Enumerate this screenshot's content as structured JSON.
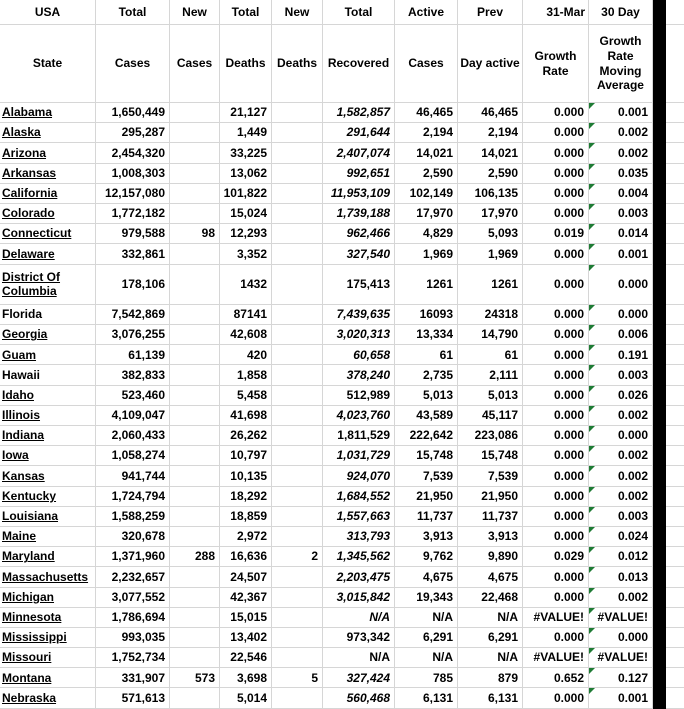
{
  "table": {
    "header_row1": [
      "USA",
      "Total",
      "New",
      "Total",
      "New",
      "Total",
      "Active",
      "Prev",
      "31-Mar",
      "30 Day"
    ],
    "header_row2": [
      "State",
      "Cases",
      "Cases",
      "Deaths",
      "Deaths",
      "Recovered",
      "Cases",
      "Day active",
      "Growth Rate",
      "Growth Rate Moving Average"
    ],
    "rows": [
      {
        "state": "Alabama",
        "underline": true,
        "tall": false,
        "cases": "1,650,449",
        "new_cases": "",
        "deaths": "21,127",
        "new_deaths": "",
        "recovered": "1,582,857",
        "recovered_italic": true,
        "active": "46,465",
        "prev": "46,465",
        "growth": "0.000",
        "growth30": "0.001",
        "triangle": true
      },
      {
        "state": "Alaska",
        "underline": true,
        "tall": false,
        "cases": "295,287",
        "new_cases": "",
        "deaths": "1,449",
        "new_deaths": "",
        "recovered": "291,644",
        "recovered_italic": true,
        "active": "2,194",
        "prev": "2,194",
        "growth": "0.000",
        "growth30": "0.002",
        "triangle": true
      },
      {
        "state": "Arizona",
        "underline": true,
        "tall": false,
        "cases": "2,454,320",
        "new_cases": "",
        "deaths": "33,225",
        "new_deaths": "",
        "recovered": "2,407,074",
        "recovered_italic": true,
        "active": "14,021",
        "prev": "14,021",
        "growth": "0.000",
        "growth30": "0.002",
        "triangle": true
      },
      {
        "state": "Arkansas",
        "underline": true,
        "tall": false,
        "cases": "1,008,303",
        "new_cases": "",
        "deaths": "13,062",
        "new_deaths": "",
        "recovered": "992,651",
        "recovered_italic": true,
        "active": "2,590",
        "prev": "2,590",
        "growth": "0.000",
        "growth30": "0.035",
        "triangle": true
      },
      {
        "state": "California",
        "underline": true,
        "tall": false,
        "cases": "12,157,080",
        "new_cases": "",
        "deaths": "101,822",
        "new_deaths": "",
        "recovered": "11,953,109",
        "recovered_italic": true,
        "active": "102,149",
        "prev": "106,135",
        "growth": "0.000",
        "growth30": "0.004",
        "triangle": true
      },
      {
        "state": "Colorado",
        "underline": true,
        "tall": false,
        "cases": "1,772,182",
        "new_cases": "",
        "deaths": "15,024",
        "new_deaths": "",
        "recovered": "1,739,188",
        "recovered_italic": true,
        "active": "17,970",
        "prev": "17,970",
        "growth": "0.000",
        "growth30": "0.003",
        "triangle": true
      },
      {
        "state": "Connecticut",
        "underline": true,
        "tall": false,
        "cases": "979,588",
        "new_cases": "98",
        "deaths": "12,293",
        "new_deaths": "",
        "recovered": "962,466",
        "recovered_italic": true,
        "active": "4,829",
        "prev": "5,093",
        "growth": "0.019",
        "growth30": "0.014",
        "triangle": true
      },
      {
        "state": "Delaware",
        "underline": true,
        "tall": false,
        "cases": "332,861",
        "new_cases": "",
        "deaths": "3,352",
        "new_deaths": "",
        "recovered": "327,540",
        "recovered_italic": true,
        "active": "1,969",
        "prev": "1,969",
        "growth": "0.000",
        "growth30": "0.001",
        "triangle": true
      },
      {
        "state": "District Of Columbia",
        "underline": true,
        "tall": true,
        "cases": "178,106",
        "new_cases": "",
        "deaths": "1432",
        "new_deaths": "",
        "recovered": "175,413",
        "recovered_italic": false,
        "active": "1261",
        "prev": "1261",
        "growth": "0.000",
        "growth30": "0.000",
        "triangle": true
      },
      {
        "state": "Florida",
        "underline": false,
        "tall": false,
        "cases": "7,542,869",
        "new_cases": "",
        "deaths": "87141",
        "new_deaths": "",
        "recovered": "7,439,635",
        "recovered_italic": true,
        "active": "16093",
        "prev": "24318",
        "growth": "0.000",
        "growth30": "0.000",
        "triangle": true
      },
      {
        "state": "Georgia",
        "underline": true,
        "tall": false,
        "cases": "3,076,255",
        "new_cases": "",
        "deaths": "42,608",
        "new_deaths": "",
        "recovered": "3,020,313",
        "recovered_italic": true,
        "active": "13,334",
        "prev": "14,790",
        "growth": "0.000",
        "growth30": "0.006",
        "triangle": true
      },
      {
        "state": "Guam",
        "underline": true,
        "tall": false,
        "cases": "61,139",
        "new_cases": "",
        "deaths": "420",
        "new_deaths": "",
        "recovered": "60,658",
        "recovered_italic": true,
        "active": "61",
        "prev": "61",
        "growth": "0.000",
        "growth30": "0.191",
        "triangle": true
      },
      {
        "state": "Hawaii",
        "underline": false,
        "tall": false,
        "cases": "382,833",
        "new_cases": "",
        "deaths": "1,858",
        "new_deaths": "",
        "recovered": "378,240",
        "recovered_italic": true,
        "active": "2,735",
        "prev": "2,111",
        "growth": "0.000",
        "growth30": "0.003",
        "triangle": true
      },
      {
        "state": "Idaho",
        "underline": true,
        "tall": false,
        "cases": "523,460",
        "new_cases": "",
        "deaths": "5,458",
        "new_deaths": "",
        "recovered": "512,989",
        "recovered_italic": false,
        "active": "5,013",
        "prev": "5,013",
        "growth": "0.000",
        "growth30": "0.026",
        "triangle": true
      },
      {
        "state": "Illinois",
        "underline": true,
        "tall": false,
        "cases": "4,109,047",
        "new_cases": "",
        "deaths": "41,698",
        "new_deaths": "",
        "recovered": "4,023,760",
        "recovered_italic": true,
        "active": "43,589",
        "prev": "45,117",
        "growth": "0.000",
        "growth30": "0.002",
        "triangle": true
      },
      {
        "state": "Indiana",
        "underline": true,
        "tall": false,
        "cases": "2,060,433",
        "new_cases": "",
        "deaths": "26,262",
        "new_deaths": "",
        "recovered": "1,811,529",
        "recovered_italic": false,
        "active": "222,642",
        "prev": "223,086",
        "growth": "0.000",
        "growth30": "0.000",
        "triangle": true
      },
      {
        "state": "Iowa",
        "underline": true,
        "tall": false,
        "cases": "1,058,274",
        "new_cases": "",
        "deaths": "10,797",
        "new_deaths": "",
        "recovered": "1,031,729",
        "recovered_italic": true,
        "active": "15,748",
        "prev": "15,748",
        "growth": "0.000",
        "growth30": "0.002",
        "triangle": true
      },
      {
        "state": "Kansas",
        "underline": true,
        "tall": false,
        "cases": "941,744",
        "new_cases": "",
        "deaths": "10,135",
        "new_deaths": "",
        "recovered": "924,070",
        "recovered_italic": true,
        "active": "7,539",
        "prev": "7,539",
        "growth": "0.000",
        "growth30": "0.002",
        "triangle": true
      },
      {
        "state": "Kentucky",
        "underline": true,
        "tall": false,
        "cases": "1,724,794",
        "new_cases": "",
        "deaths": "18,292",
        "new_deaths": "",
        "recovered": "1,684,552",
        "recovered_italic": true,
        "active": "21,950",
        "prev": "21,950",
        "growth": "0.000",
        "growth30": "0.002",
        "triangle": true
      },
      {
        "state": "Louisiana",
        "underline": true,
        "tall": false,
        "cases": "1,588,259",
        "new_cases": "",
        "deaths": "18,859",
        "new_deaths": "",
        "recovered": "1,557,663",
        "recovered_italic": true,
        "active": "11,737",
        "prev": "11,737",
        "growth": "0.000",
        "growth30": "0.003",
        "triangle": true
      },
      {
        "state": "Maine",
        "underline": true,
        "tall": false,
        "cases": "320,678",
        "new_cases": "",
        "deaths": "2,972",
        "new_deaths": "",
        "recovered": "313,793",
        "recovered_italic": true,
        "active": "3,913",
        "prev": "3,913",
        "growth": "0.000",
        "growth30": "0.024",
        "triangle": true
      },
      {
        "state": "Maryland",
        "underline": true,
        "tall": false,
        "cases": "1,371,960",
        "new_cases": "288",
        "deaths": "16,636",
        "new_deaths": "2",
        "recovered": "1,345,562",
        "recovered_italic": true,
        "active": "9,762",
        "prev": "9,890",
        "growth": "0.029",
        "growth30": "0.012",
        "triangle": true
      },
      {
        "state": "Massachusetts",
        "underline": true,
        "tall": false,
        "cases": "2,232,657",
        "new_cases": "",
        "deaths": "24,507",
        "new_deaths": "",
        "recovered": "2,203,475",
        "recovered_italic": true,
        "active": "4,675",
        "prev": "4,675",
        "growth": "0.000",
        "growth30": "0.013",
        "triangle": true
      },
      {
        "state": "Michigan",
        "underline": true,
        "tall": false,
        "cases": "3,077,552",
        "new_cases": "",
        "deaths": "42,367",
        "new_deaths": "",
        "recovered": "3,015,842",
        "recovered_italic": true,
        "active": "19,343",
        "prev": "22,468",
        "growth": "0.000",
        "growth30": "0.002",
        "triangle": true
      },
      {
        "state": "Minnesota",
        "underline": true,
        "tall": false,
        "cases": "1,786,694",
        "new_cases": "",
        "deaths": "15,015",
        "new_deaths": "",
        "recovered": "N/A",
        "recovered_italic": true,
        "active": "N/A",
        "prev": "N/A",
        "growth": "#VALUE!",
        "growth30": "#VALUE!",
        "triangle": true
      },
      {
        "state": "Mississippi",
        "underline": true,
        "tall": false,
        "cases": "993,035",
        "new_cases": "",
        "deaths": "13,402",
        "new_deaths": "",
        "recovered": "973,342",
        "recovered_italic": false,
        "active": "6,291",
        "prev": "6,291",
        "growth": "0.000",
        "growth30": "0.000",
        "triangle": true
      },
      {
        "state": "Missouri",
        "underline": true,
        "tall": false,
        "cases": "1,752,734",
        "new_cases": "",
        "deaths": "22,546",
        "new_deaths": "",
        "recovered": "N/A",
        "recovered_italic": false,
        "active": "N/A",
        "prev": "N/A",
        "growth": "#VALUE!",
        "growth30": "#VALUE!",
        "triangle": true
      },
      {
        "state": "Montana",
        "underline": true,
        "tall": false,
        "cases": "331,907",
        "new_cases": "573",
        "deaths": "3,698",
        "new_deaths": "5",
        "recovered": "327,424",
        "recovered_italic": true,
        "active": "785",
        "prev": "879",
        "growth": "0.652",
        "growth30": "0.127",
        "triangle": true
      },
      {
        "state": "Nebraska",
        "underline": true,
        "tall": false,
        "cases": "571,613",
        "new_cases": "",
        "deaths": "5,014",
        "new_deaths": "",
        "recovered": "560,468",
        "recovered_italic": true,
        "active": "6,131",
        "prev": "6,131",
        "growth": "0.000",
        "growth30": "0.001",
        "triangle": true
      }
    ]
  },
  "colors": {
    "gridline": "#d6d6d6",
    "error_triangle": "#1e7b34",
    "black_column": "#000000"
  },
  "icons": {
    "error_indicator": "formula-error-triangle"
  }
}
